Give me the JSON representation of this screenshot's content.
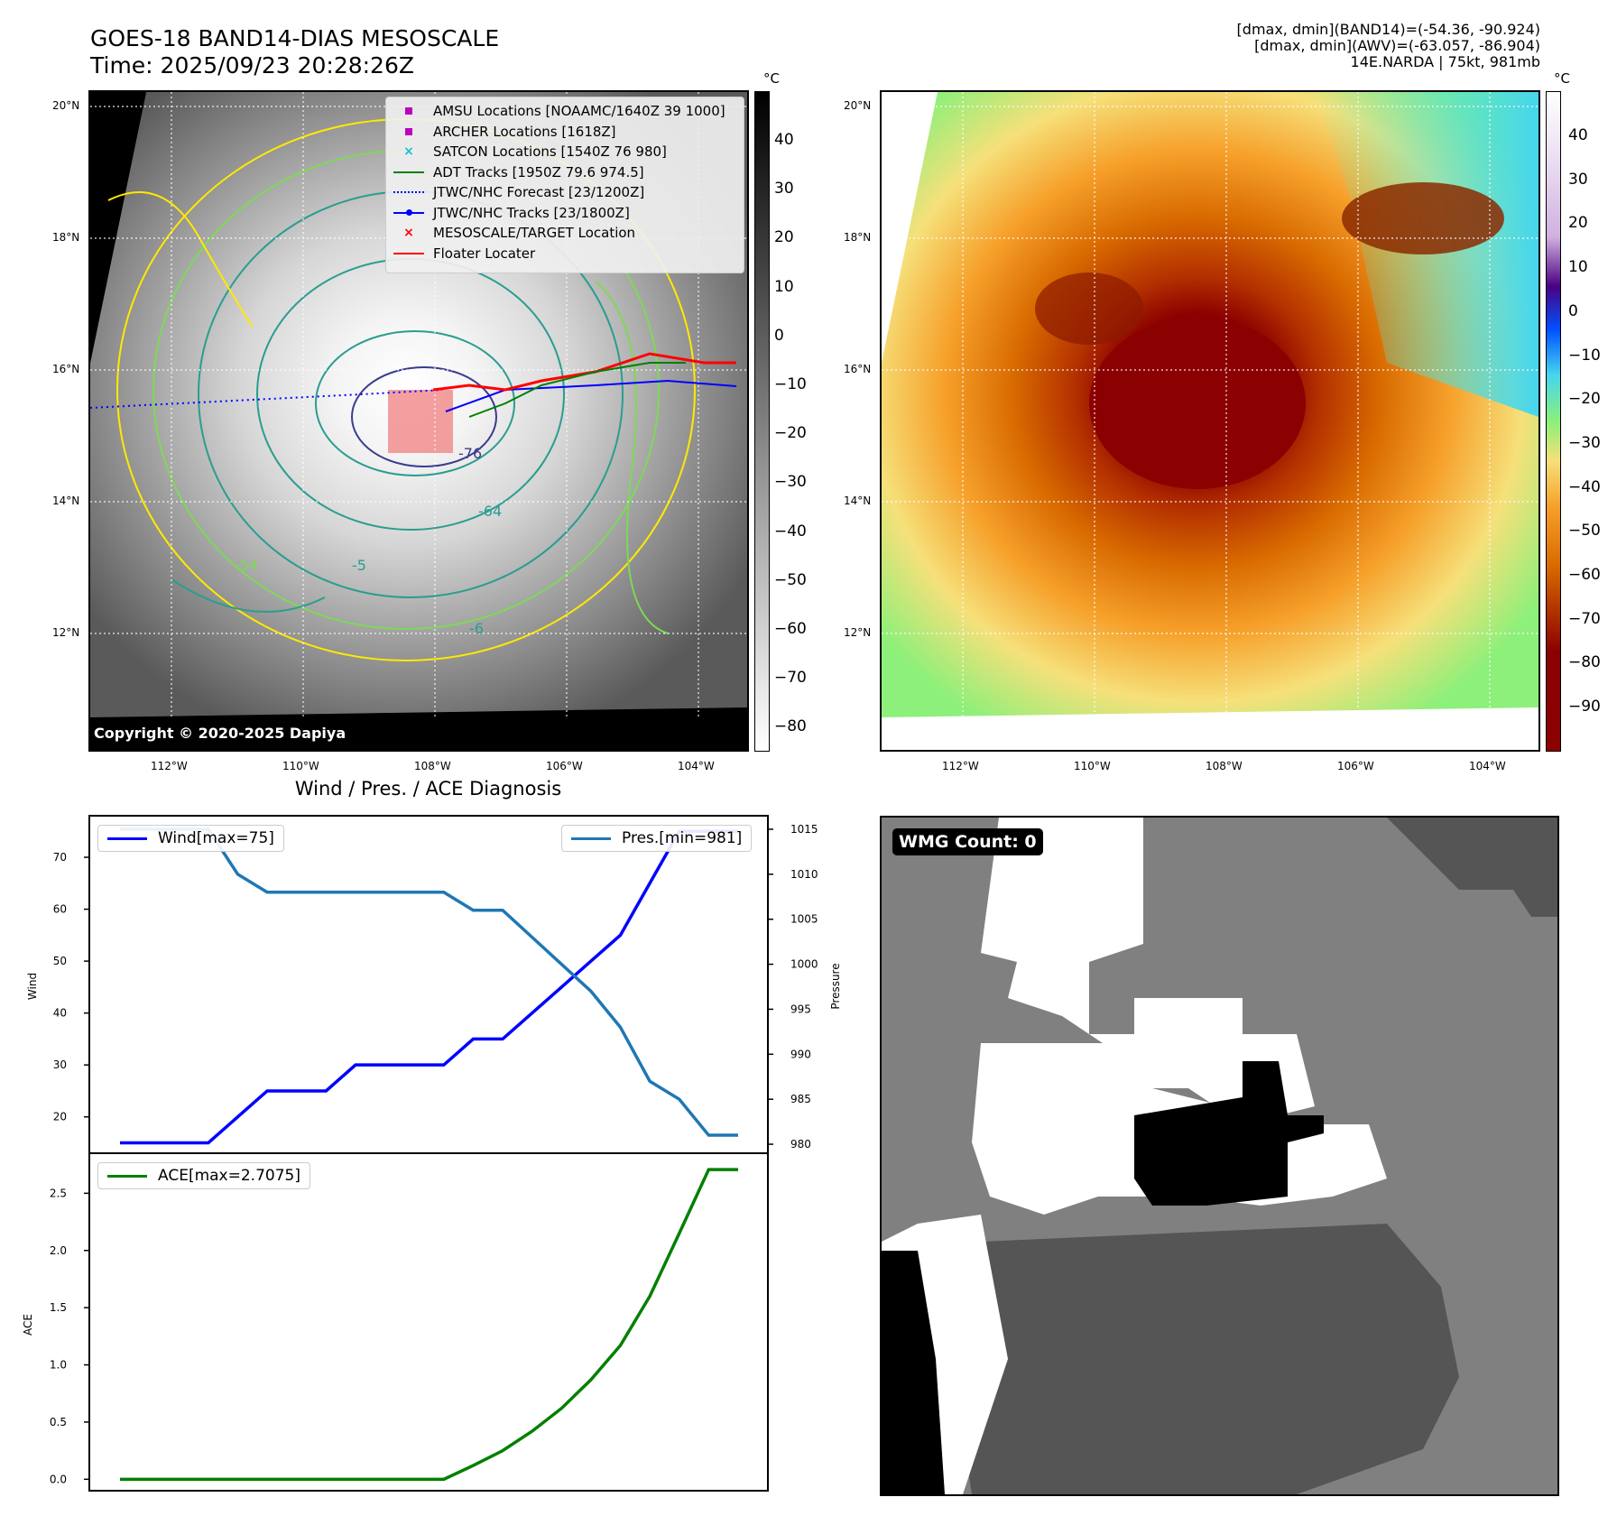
{
  "header": {
    "title_line1": "GOES-18 BAND14-DIAS MESOSCALE",
    "title_line2": "Time: 2025/09/23 20:28:26Z",
    "info_line1": "[dmax, dmin](BAND14)=(-54.36, -90.924)",
    "info_line2": "[dmax, dmin](AWV)=(-63.057, -86.904)",
    "info_line3": "14E.NARDA | 75kt, 981mb"
  },
  "map_left": {
    "lat_labels": [
      "20°N",
      "18°N",
      "16°N",
      "14°N",
      "12°N"
    ],
    "lon_labels": [
      "112°W",
      "110°W",
      "108°W",
      "106°W",
      "104°W"
    ],
    "contour_labels": [
      "-76",
      "-64",
      "-54",
      "-5",
      "-6"
    ],
    "copyright": "Copyright © 2020-2025 Dapiya",
    "legend": [
      {
        "label": "AMSU Locations [NOAAMC/1640Z 39 1000]",
        "color": "#bf00bf",
        "symbol": "square"
      },
      {
        "label": "ARCHER Locations [1618Z]",
        "color": "#bf00bf",
        "symbol": "square"
      },
      {
        "label": "SATCON Locations [1540Z 76 980]",
        "color": "#17becf",
        "symbol": "x"
      },
      {
        "label": "ADT Tracks [1950Z 79.6 974.5]",
        "color": "#008000",
        "symbol": "line"
      },
      {
        "label": "JTWC/NHC Forecast [23/1200Z]",
        "color": "#0000ff",
        "symbol": "dotted"
      },
      {
        "label": "JTWC/NHC Tracks [23/1800Z]",
        "color": "#0000ff",
        "symbol": "line-dot"
      },
      {
        "label": "MESOSCALE/TARGET Location",
        "color": "#ff0000",
        "symbol": "x"
      },
      {
        "label": "Floater Locater",
        "color": "#ff0000",
        "symbol": "line"
      }
    ],
    "colorbar": {
      "unit": "°C",
      "ticks": [
        "40",
        "30",
        "20",
        "10",
        "0",
        "−10",
        "−20",
        "−30",
        "−40",
        "−50",
        "−60",
        "−70",
        "−80"
      ]
    }
  },
  "map_right": {
    "lat_labels": [
      "20°N",
      "18°N",
      "16°N",
      "14°N",
      "12°N"
    ],
    "lon_labels": [
      "112°W",
      "110°W",
      "108°W",
      "106°W",
      "104°W"
    ],
    "colorbar": {
      "unit": "°C",
      "ticks": [
        "40",
        "30",
        "20",
        "10",
        "0",
        "−10",
        "−20",
        "−30",
        "−40",
        "−50",
        "−60",
        "−70",
        "−80",
        "−90"
      ]
    }
  },
  "wmg": {
    "label": "WMG Count: 0"
  },
  "colors": {
    "wind": "#0000ff",
    "pressure": "#1f77b4",
    "ace": "#008000",
    "floater": "#ff0000"
  },
  "chart_data": [
    {
      "type": "line",
      "title": "Wind / Pres. / ACE Diagnosis",
      "x": [
        0,
        1,
        2,
        3,
        4,
        5,
        6,
        7,
        8,
        9,
        10,
        11,
        12,
        13,
        14,
        15,
        16,
        17,
        18,
        19,
        20,
        21
      ],
      "series": [
        {
          "name": "Wind[max=75]",
          "axis": "left",
          "values": [
            15,
            15,
            15,
            15,
            20,
            25,
            25,
            25,
            30,
            30,
            30,
            30,
            35,
            35,
            40,
            45,
            50,
            55,
            65,
            75,
            75,
            75
          ]
        },
        {
          "name": "Pres.[min=981]",
          "axis": "right",
          "values": [
            1015,
            1015,
            1015,
            1015,
            1010,
            1008,
            1008,
            1008,
            1008,
            1008,
            1008,
            1008,
            1006,
            1006,
            1003,
            1000,
            997,
            993,
            987,
            985,
            981,
            981
          ]
        }
      ],
      "ylabel": "Wind",
      "ylabel_right": "Pressure",
      "ylim": [
        13,
        78
      ],
      "ylim_right": [
        979,
        1016.5
      ],
      "yticks": [
        20,
        30,
        40,
        50,
        60,
        70
      ],
      "yticks_right": [
        980,
        985,
        990,
        995,
        1000,
        1005,
        1010,
        1015
      ]
    },
    {
      "type": "line",
      "x": [
        0,
        1,
        2,
        3,
        4,
        5,
        6,
        7,
        8,
        9,
        10,
        11,
        12,
        13,
        14,
        15,
        16,
        17,
        18,
        19,
        20,
        21
      ],
      "series": [
        {
          "name": "ACE[max=2.7075]",
          "values": [
            0,
            0,
            0,
            0,
            0,
            0,
            0,
            0,
            0,
            0,
            0,
            0,
            0.12,
            0.25,
            0.42,
            0.62,
            0.87,
            1.17,
            1.6,
            2.15,
            2.7075,
            2.7075
          ]
        }
      ],
      "ylabel": "ACE",
      "ylim": [
        -0.1,
        2.85
      ],
      "yticks": [
        0.0,
        0.5,
        1.0,
        1.5,
        2.0,
        2.5
      ],
      "ytick_labels": [
        "0.0",
        "0.5",
        "1.0",
        "1.5",
        "2.0",
        "2.5"
      ]
    }
  ]
}
